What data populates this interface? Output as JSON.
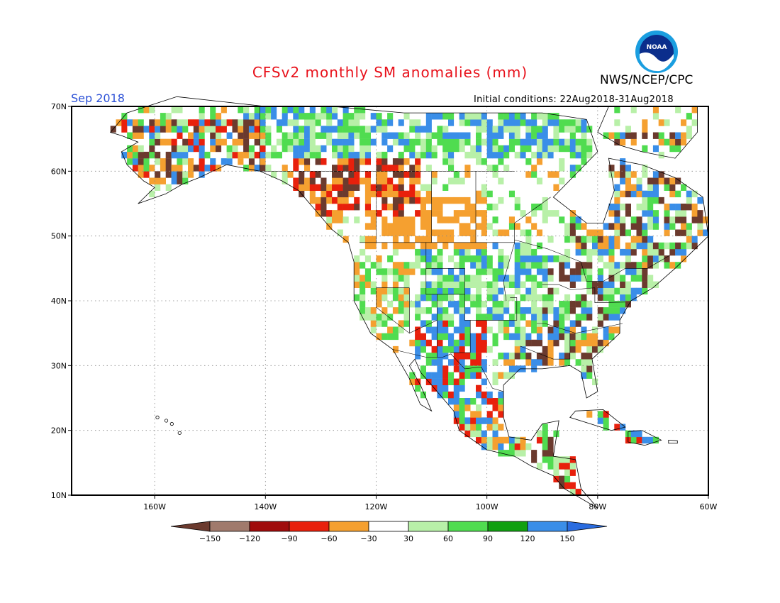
{
  "title": "CFSv2 monthly SM anomalies (mm)",
  "organization": "NWS/NCEP/CPC",
  "logo_text": "NOAA",
  "month_label": "Sep 2018",
  "initial_conditions": "Initial conditions: 22Aug2018-31Aug2018",
  "colors": {
    "title": "#e8101a",
    "month": "#2a4fd6",
    "ocean": "#ffffff",
    "coast": "#000000",
    "grid": "#888888"
  },
  "map": {
    "lon_range": [
      -175,
      -60
    ],
    "lat_range": [
      10,
      70
    ],
    "lat_ticks": [
      {
        "value": 70,
        "label": "70N"
      },
      {
        "value": 60,
        "label": "60N"
      },
      {
        "value": 50,
        "label": "50N"
      },
      {
        "value": 40,
        "label": "40N"
      },
      {
        "value": 30,
        "label": "30N"
      },
      {
        "value": 20,
        "label": "20N"
      },
      {
        "value": 10,
        "label": "10N"
      }
    ],
    "lon_ticks": [
      {
        "value": -160,
        "label": "160W"
      },
      {
        "value": -140,
        "label": "140W"
      },
      {
        "value": -120,
        "label": "120W"
      },
      {
        "value": -100,
        "label": "100W"
      },
      {
        "value": -80,
        "label": "80W"
      },
      {
        "value": -60,
        "label": "60W"
      }
    ]
  },
  "colorbar": {
    "levels": [
      "-150",
      "-120",
      "-90",
      "-60",
      "-30",
      "30",
      "60",
      "90",
      "120",
      "150"
    ],
    "colors": [
      "#6b3a2e",
      "#a07a6c",
      "#a00c0c",
      "#e8200c",
      "#f5a030",
      "#ffffff",
      "#b8f0a8",
      "#50dc50",
      "#11a011",
      "#3a8ee8",
      "#2a6ce0"
    ]
  },
  "anomaly_regions": [
    {
      "name": "alaska-mixed",
      "lon": [
        -168,
        -140
      ],
      "lat": [
        58,
        68
      ],
      "classes": [
        "orange",
        "brown",
        "red",
        "lightgreen",
        "green",
        "blue"
      ]
    },
    {
      "name": "yukon-mixed",
      "lon": [
        -145,
        -120
      ],
      "lat": [
        62,
        70
      ],
      "classes": [
        "blue",
        "lightgreen",
        "green"
      ]
    },
    {
      "name": "nw-canada-dry",
      "lon": [
        -135,
        -112
      ],
      "lat": [
        53,
        62
      ],
      "classes": [
        "brown",
        "red",
        "orange"
      ]
    },
    {
      "name": "prairies-dry",
      "lon": [
        -122,
        -100
      ],
      "lat": [
        48,
        56
      ],
      "classes": [
        "orange"
      ]
    },
    {
      "name": "north-canada-wet",
      "lon": [
        -120,
        -80
      ],
      "lat": [
        62,
        70
      ],
      "classes": [
        "blue",
        "green",
        "lightgreen"
      ]
    },
    {
      "name": "east-canada",
      "lon": [
        -85,
        -60
      ],
      "lat": [
        45,
        66
      ],
      "classes": [
        "green",
        "lightgreen",
        "blue",
        "orange",
        "brown"
      ]
    },
    {
      "name": "west-us-dry",
      "lon": [
        -124,
        -114
      ],
      "lat": [
        34,
        46
      ],
      "classes": [
        "orange",
        "lightgreen",
        "green"
      ]
    },
    {
      "name": "plains-wet",
      "lon": [
        -113,
        -90
      ],
      "lat": [
        37,
        49
      ],
      "classes": [
        "blue",
        "green",
        "lightgreen"
      ]
    },
    {
      "name": "southwest-wet",
      "lon": [
        -113,
        -100
      ],
      "lat": [
        24,
        38
      ],
      "classes": [
        "blue",
        "green",
        "red"
      ]
    },
    {
      "name": "southeast",
      "lon": [
        -97,
        -76
      ],
      "lat": [
        28,
        38
      ],
      "classes": [
        "green",
        "lightgreen",
        "blue",
        "orange",
        "brown"
      ]
    },
    {
      "name": "northeast",
      "lon": [
        -90,
        -70
      ],
      "lat": [
        38,
        47
      ],
      "classes": [
        "green",
        "lightgreen",
        "blue",
        "brown"
      ]
    },
    {
      "name": "mexico",
      "lon": [
        -108,
        -92
      ],
      "lat": [
        15,
        26
      ],
      "classes": [
        "green",
        "lightgreen",
        "blue",
        "red",
        "orange"
      ]
    },
    {
      "name": "central-america",
      "lon": [
        -92,
        -82
      ],
      "lat": [
        8,
        20
      ],
      "classes": [
        "green",
        "lightgreen",
        "brown",
        "red"
      ]
    },
    {
      "name": "caribbean",
      "lon": [
        -80,
        -66
      ],
      "lat": [
        17,
        23
      ],
      "classes": [
        "blue",
        "green",
        "red"
      ]
    }
  ]
}
